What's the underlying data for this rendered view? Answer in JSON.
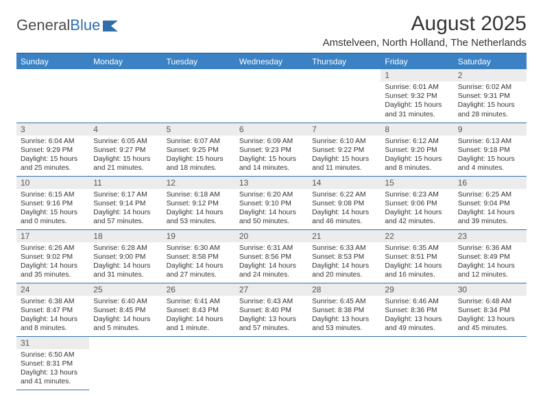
{
  "logo": {
    "text1": "General",
    "text2": "Blue"
  },
  "title": "August 2025",
  "subtitle": "Amstelveen, North Holland, The Netherlands",
  "colors": {
    "header_bg": "#3b82c4",
    "header_fg": "#ffffff",
    "rule": "#2f6fab",
    "daynum_bg": "#ececec",
    "logo_blue": "#2f6fab"
  },
  "dayNames": [
    "Sunday",
    "Monday",
    "Tuesday",
    "Wednesday",
    "Thursday",
    "Friday",
    "Saturday"
  ],
  "weeks": [
    [
      null,
      null,
      null,
      null,
      null,
      {
        "n": "1",
        "sunrise": "Sunrise: 6:01 AM",
        "sunset": "Sunset: 9:32 PM",
        "day": "Daylight: 15 hours and 31 minutes."
      },
      {
        "n": "2",
        "sunrise": "Sunrise: 6:02 AM",
        "sunset": "Sunset: 9:31 PM",
        "day": "Daylight: 15 hours and 28 minutes."
      }
    ],
    [
      {
        "n": "3",
        "sunrise": "Sunrise: 6:04 AM",
        "sunset": "Sunset: 9:29 PM",
        "day": "Daylight: 15 hours and 25 minutes."
      },
      {
        "n": "4",
        "sunrise": "Sunrise: 6:05 AM",
        "sunset": "Sunset: 9:27 PM",
        "day": "Daylight: 15 hours and 21 minutes."
      },
      {
        "n": "5",
        "sunrise": "Sunrise: 6:07 AM",
        "sunset": "Sunset: 9:25 PM",
        "day": "Daylight: 15 hours and 18 minutes."
      },
      {
        "n": "6",
        "sunrise": "Sunrise: 6:09 AM",
        "sunset": "Sunset: 9:23 PM",
        "day": "Daylight: 15 hours and 14 minutes."
      },
      {
        "n": "7",
        "sunrise": "Sunrise: 6:10 AM",
        "sunset": "Sunset: 9:22 PM",
        "day": "Daylight: 15 hours and 11 minutes."
      },
      {
        "n": "8",
        "sunrise": "Sunrise: 6:12 AM",
        "sunset": "Sunset: 9:20 PM",
        "day": "Daylight: 15 hours and 8 minutes."
      },
      {
        "n": "9",
        "sunrise": "Sunrise: 6:13 AM",
        "sunset": "Sunset: 9:18 PM",
        "day": "Daylight: 15 hours and 4 minutes."
      }
    ],
    [
      {
        "n": "10",
        "sunrise": "Sunrise: 6:15 AM",
        "sunset": "Sunset: 9:16 PM",
        "day": "Daylight: 15 hours and 0 minutes."
      },
      {
        "n": "11",
        "sunrise": "Sunrise: 6:17 AM",
        "sunset": "Sunset: 9:14 PM",
        "day": "Daylight: 14 hours and 57 minutes."
      },
      {
        "n": "12",
        "sunrise": "Sunrise: 6:18 AM",
        "sunset": "Sunset: 9:12 PM",
        "day": "Daylight: 14 hours and 53 minutes."
      },
      {
        "n": "13",
        "sunrise": "Sunrise: 6:20 AM",
        "sunset": "Sunset: 9:10 PM",
        "day": "Daylight: 14 hours and 50 minutes."
      },
      {
        "n": "14",
        "sunrise": "Sunrise: 6:22 AM",
        "sunset": "Sunset: 9:08 PM",
        "day": "Daylight: 14 hours and 46 minutes."
      },
      {
        "n": "15",
        "sunrise": "Sunrise: 6:23 AM",
        "sunset": "Sunset: 9:06 PM",
        "day": "Daylight: 14 hours and 42 minutes."
      },
      {
        "n": "16",
        "sunrise": "Sunrise: 6:25 AM",
        "sunset": "Sunset: 9:04 PM",
        "day": "Daylight: 14 hours and 39 minutes."
      }
    ],
    [
      {
        "n": "17",
        "sunrise": "Sunrise: 6:26 AM",
        "sunset": "Sunset: 9:02 PM",
        "day": "Daylight: 14 hours and 35 minutes."
      },
      {
        "n": "18",
        "sunrise": "Sunrise: 6:28 AM",
        "sunset": "Sunset: 9:00 PM",
        "day": "Daylight: 14 hours and 31 minutes."
      },
      {
        "n": "19",
        "sunrise": "Sunrise: 6:30 AM",
        "sunset": "Sunset: 8:58 PM",
        "day": "Daylight: 14 hours and 27 minutes."
      },
      {
        "n": "20",
        "sunrise": "Sunrise: 6:31 AM",
        "sunset": "Sunset: 8:56 PM",
        "day": "Daylight: 14 hours and 24 minutes."
      },
      {
        "n": "21",
        "sunrise": "Sunrise: 6:33 AM",
        "sunset": "Sunset: 8:53 PM",
        "day": "Daylight: 14 hours and 20 minutes."
      },
      {
        "n": "22",
        "sunrise": "Sunrise: 6:35 AM",
        "sunset": "Sunset: 8:51 PM",
        "day": "Daylight: 14 hours and 16 minutes."
      },
      {
        "n": "23",
        "sunrise": "Sunrise: 6:36 AM",
        "sunset": "Sunset: 8:49 PM",
        "day": "Daylight: 14 hours and 12 minutes."
      }
    ],
    [
      {
        "n": "24",
        "sunrise": "Sunrise: 6:38 AM",
        "sunset": "Sunset: 8:47 PM",
        "day": "Daylight: 14 hours and 8 minutes."
      },
      {
        "n": "25",
        "sunrise": "Sunrise: 6:40 AM",
        "sunset": "Sunset: 8:45 PM",
        "day": "Daylight: 14 hours and 5 minutes."
      },
      {
        "n": "26",
        "sunrise": "Sunrise: 6:41 AM",
        "sunset": "Sunset: 8:43 PM",
        "day": "Daylight: 14 hours and 1 minute."
      },
      {
        "n": "27",
        "sunrise": "Sunrise: 6:43 AM",
        "sunset": "Sunset: 8:40 PM",
        "day": "Daylight: 13 hours and 57 minutes."
      },
      {
        "n": "28",
        "sunrise": "Sunrise: 6:45 AM",
        "sunset": "Sunset: 8:38 PM",
        "day": "Daylight: 13 hours and 53 minutes."
      },
      {
        "n": "29",
        "sunrise": "Sunrise: 6:46 AM",
        "sunset": "Sunset: 8:36 PM",
        "day": "Daylight: 13 hours and 49 minutes."
      },
      {
        "n": "30",
        "sunrise": "Sunrise: 6:48 AM",
        "sunset": "Sunset: 8:34 PM",
        "day": "Daylight: 13 hours and 45 minutes."
      }
    ],
    [
      {
        "n": "31",
        "sunrise": "Sunrise: 6:50 AM",
        "sunset": "Sunset: 8:31 PM",
        "day": "Daylight: 13 hours and 41 minutes."
      },
      null,
      null,
      null,
      null,
      null,
      null
    ]
  ]
}
